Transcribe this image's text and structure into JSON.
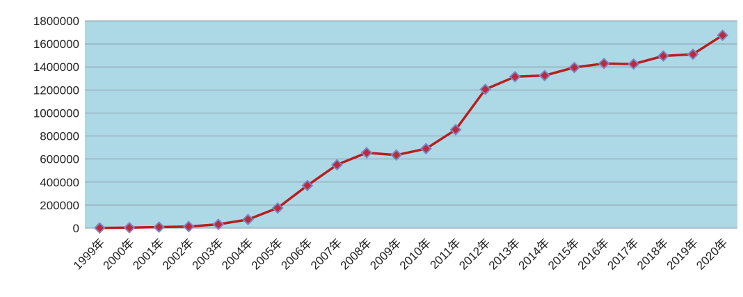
{
  "chart_data": {
    "type": "line",
    "title": "",
    "xlabel": "",
    "ylabel": "",
    "categories": [
      "1999年",
      "2000年",
      "2001年",
      "2002年",
      "2003年",
      "2004年",
      "2005年",
      "2006年",
      "2007年",
      "2008年",
      "2009年",
      "2010年",
      "2011年",
      "2012年",
      "2013年",
      "2014年",
      "2015年",
      "2016年",
      "2017年",
      "2018年",
      "2019年",
      "2020年"
    ],
    "series": [
      {
        "values": [
          2000,
          4000,
          9000,
          14000,
          33000,
          75000,
          175000,
          370000,
          550000,
          655000,
          635000,
          690000,
          855000,
          1205000,
          1315000,
          1325000,
          1395000,
          1430000,
          1425000,
          1495000,
          1510000,
          1675000
        ]
      }
    ],
    "ylim": [
      0,
      1800000
    ],
    "yticks": [
      "0",
      "200000",
      "400000",
      "600000",
      "800000",
      "1000000",
      "1200000",
      "1400000",
      "1600000",
      "1800000"
    ],
    "grid": true,
    "legend": "none",
    "colors": {
      "plot_background": "#add8e6",
      "line": "#b81e1e",
      "marker_fill": "#c0283a",
      "marker_stroke": "#7b86c6",
      "grid": "#8a9aa4"
    }
  }
}
